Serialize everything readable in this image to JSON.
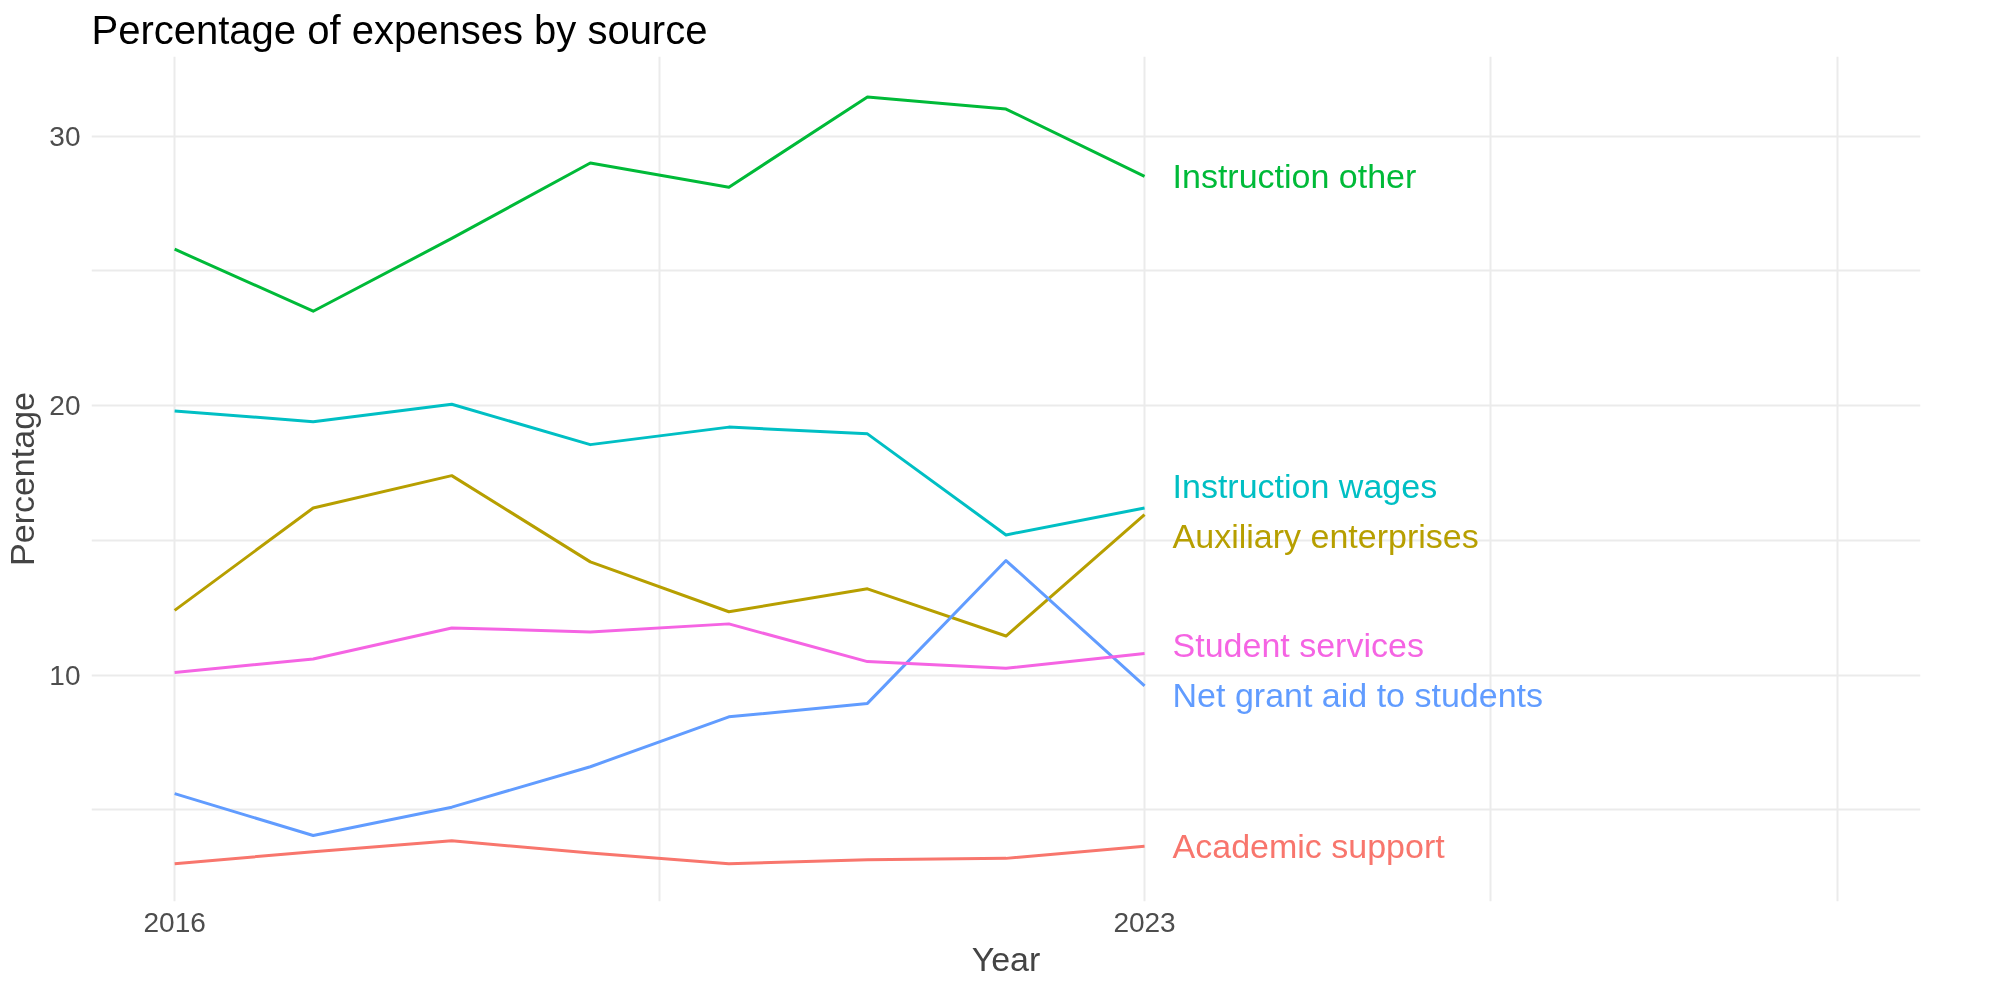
{
  "chart_data": {
    "type": "line",
    "title": "Percentage of expenses by source",
    "xlabel": "Year",
    "ylabel": "Percentage",
    "x": [
      2016,
      2017,
      2018,
      2019,
      2020,
      2021,
      2022,
      2023
    ],
    "series": [
      {
        "name": "Academic support",
        "color": "#f8766d",
        "values": [
          3.0,
          3.45,
          3.85,
          3.4,
          3.0,
          3.15,
          3.2,
          3.65
        ]
      },
      {
        "name": "Auxiliary enterprises",
        "color": "#b79f00",
        "values": [
          12.4,
          16.2,
          17.4,
          14.2,
          12.35,
          13.2,
          11.45,
          15.95
        ]
      },
      {
        "name": "Instruction other",
        "color": "#00ba38",
        "values": [
          25.8,
          23.5,
          26.2,
          29.0,
          28.1,
          31.45,
          31.0,
          28.5
        ]
      },
      {
        "name": "Instruction wages",
        "color": "#00bfc4",
        "values": [
          19.8,
          19.4,
          20.05,
          18.55,
          19.2,
          18.95,
          15.2,
          16.2
        ]
      },
      {
        "name": "Net grant aid to students",
        "color": "#619cff",
        "values": [
          5.6,
          4.05,
          5.1,
          6.6,
          8.45,
          8.95,
          14.25,
          9.6
        ]
      },
      {
        "name": "Student services",
        "color": "#f564e3",
        "values": [
          10.1,
          10.6,
          11.75,
          11.6,
          11.9,
          10.5,
          10.25,
          10.8
        ]
      }
    ],
    "xlim": [
      2015.4,
      2028.6
    ],
    "xticks": [
      2016,
      {
        "value": 2019.5,
        "label": null
      },
      2023,
      {
        "value": 2025.5,
        "label": null
      },
      {
        "value": 2028,
        "label": null
      }
    ],
    "ylim": [
      1.6,
      32.95
    ],
    "yticks": [
      {
        "value": 5,
        "label": null
      },
      10,
      {
        "value": 15,
        "label": null
      },
      20,
      {
        "value": 25,
        "label": null
      },
      30
    ],
    "grid": true
  }
}
